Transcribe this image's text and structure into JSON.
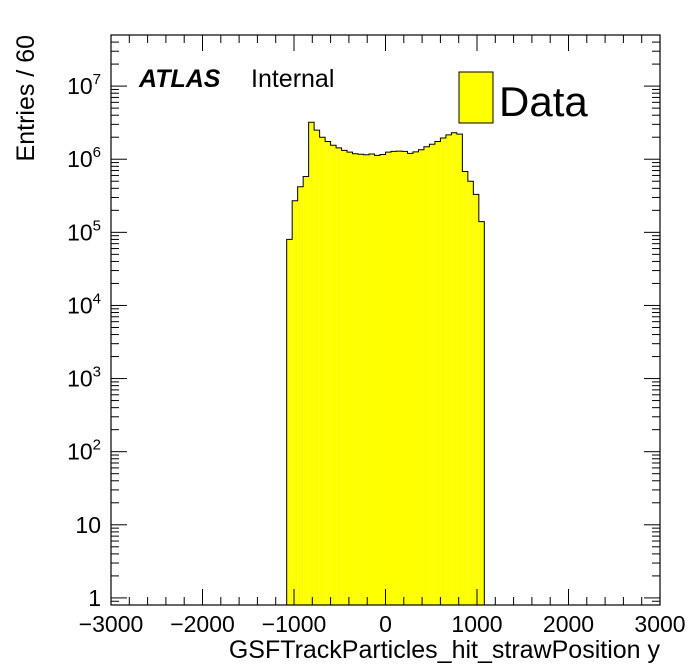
{
  "chart_data": {
    "type": "bar",
    "xlabel": "GSFTrackParticles_hit_strawPosition y",
    "ylabel": "Entries / 60",
    "xlim": [
      -3000,
      3000
    ],
    "ylim": [
      0.8,
      50000000
    ],
    "yscale": "log",
    "grid": false,
    "legend_position": "top-right",
    "x_ticks": [
      {
        "value": -3000,
        "label": "−3000"
      },
      {
        "value": -2000,
        "label": "−2000"
      },
      {
        "value": -1000,
        "label": "−1000"
      },
      {
        "value": 0,
        "label": "0"
      },
      {
        "value": 1000,
        "label": "1000"
      },
      {
        "value": 2000,
        "label": "2000"
      },
      {
        "value": 3000,
        "label": "3000"
      }
    ],
    "y_ticks": [
      {
        "value": 1,
        "base": "1",
        "exp": ""
      },
      {
        "value": 10,
        "base": "10",
        "exp": ""
      },
      {
        "value": 100,
        "base": "10",
        "exp": "2"
      },
      {
        "value": 1000,
        "base": "10",
        "exp": "3"
      },
      {
        "value": 10000,
        "base": "10",
        "exp": "4"
      },
      {
        "value": 100000,
        "base": "10",
        "exp": "5"
      },
      {
        "value": 1000000,
        "base": "10",
        "exp": "6"
      },
      {
        "value": 10000000,
        "base": "10",
        "exp": "7"
      }
    ],
    "bin_width": 60,
    "series": [
      {
        "name": "Data",
        "color": "#ffff00",
        "bins": [
          {
            "x": -1080,
            "y": 80000
          },
          {
            "x": -1020,
            "y": 270000
          },
          {
            "x": -960,
            "y": 420000
          },
          {
            "x": -900,
            "y": 580000
          },
          {
            "x": -840,
            "y": 3200000
          },
          {
            "x": -780,
            "y": 2500000
          },
          {
            "x": -720,
            "y": 2000000
          },
          {
            "x": -660,
            "y": 1750000
          },
          {
            "x": -600,
            "y": 1550000
          },
          {
            "x": -540,
            "y": 1430000
          },
          {
            "x": -480,
            "y": 1320000
          },
          {
            "x": -420,
            "y": 1250000
          },
          {
            "x": -360,
            "y": 1190000
          },
          {
            "x": -300,
            "y": 1170000
          },
          {
            "x": -240,
            "y": 1150000
          },
          {
            "x": -180,
            "y": 1180000
          },
          {
            "x": -120,
            "y": 1130000
          },
          {
            "x": -60,
            "y": 1160000
          },
          {
            "x": 0,
            "y": 1250000
          },
          {
            "x": 60,
            "y": 1280000
          },
          {
            "x": 120,
            "y": 1290000
          },
          {
            "x": 180,
            "y": 1280000
          },
          {
            "x": 240,
            "y": 1200000
          },
          {
            "x": 300,
            "y": 1260000
          },
          {
            "x": 360,
            "y": 1350000
          },
          {
            "x": 420,
            "y": 1480000
          },
          {
            "x": 480,
            "y": 1600000
          },
          {
            "x": 540,
            "y": 1750000
          },
          {
            "x": 600,
            "y": 1950000
          },
          {
            "x": 660,
            "y": 2150000
          },
          {
            "x": 720,
            "y": 2300000
          },
          {
            "x": 780,
            "y": 2200000
          },
          {
            "x": 840,
            "y": 680000
          },
          {
            "x": 900,
            "y": 500000
          },
          {
            "x": 960,
            "y": 330000
          },
          {
            "x": 1020,
            "y": 140000
          }
        ]
      }
    ],
    "annotations": {
      "atlas": "ATLAS",
      "status": "Internal"
    }
  }
}
